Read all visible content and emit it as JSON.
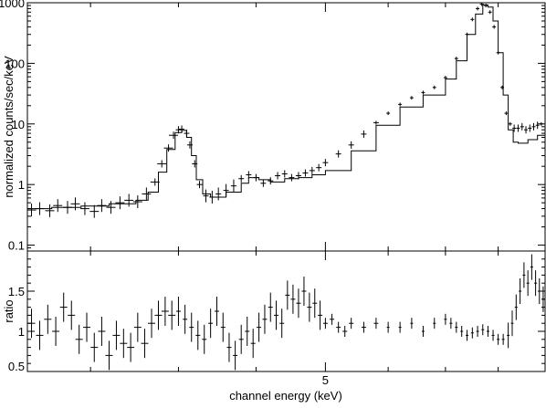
{
  "chart_data": [
    {
      "type": "scatter",
      "panel": "spectrum",
      "ylabel": "normalized counts/sec/keV",
      "yscale": "log",
      "xscale": "log",
      "xlim": [
        3.18,
        6.98
      ],
      "ylim": [
        0.08,
        1000
      ],
      "y_ticks": [
        {
          "value": 0.1,
          "label": "0.1"
        },
        {
          "value": 1,
          "label": "1"
        },
        {
          "value": 10,
          "label": "10"
        },
        {
          "value": 100,
          "label": "100"
        },
        {
          "value": 1000,
          "label": "1000"
        }
      ],
      "series": [
        {
          "style": "error-crosses",
          "x": [
            3.2,
            3.24,
            3.29,
            3.33,
            3.38,
            3.42,
            3.47,
            3.52,
            3.56,
            3.61,
            3.66,
            3.71,
            3.76,
            3.81,
            3.86,
            3.9,
            3.94,
            3.97,
            4.0,
            4.02,
            4.05,
            4.07,
            4.1,
            4.13,
            4.17,
            4.21,
            4.25,
            4.3,
            4.35,
            4.4,
            4.45,
            4.5,
            4.55,
            4.6,
            4.65,
            4.7,
            4.75,
            4.8,
            4.85,
            4.9,
            4.95,
            5.0,
            5.1,
            5.2,
            5.3,
            5.4,
            5.5,
            5.6,
            5.7,
            5.8,
            5.9,
            6.0,
            6.1,
            6.2,
            6.25,
            6.3,
            6.34,
            6.38,
            6.42,
            6.46,
            6.5,
            6.54,
            6.58,
            6.62,
            6.66,
            6.7,
            6.74,
            6.78,
            6.82,
            6.86,
            6.9,
            6.94
          ],
          "y": [
            0.38,
            0.4,
            0.37,
            0.45,
            0.42,
            0.48,
            0.4,
            0.36,
            0.45,
            0.42,
            0.5,
            0.55,
            0.52,
            0.7,
            1.1,
            2.2,
            4.0,
            6.5,
            8.0,
            8.2,
            7.0,
            4.5,
            2.2,
            1.0,
            0.65,
            0.62,
            0.7,
            0.8,
            0.95,
            1.25,
            1.45,
            1.3,
            1.05,
            1.15,
            1.4,
            1.5,
            1.3,
            1.4,
            1.55,
            1.7,
            1.9,
            2.3,
            3.2,
            4.5,
            6.8,
            10.5,
            15.0,
            21.0,
            27.0,
            33.0,
            40.0,
            58.0,
            120.0,
            300.0,
            530.0,
            800.0,
            950.0,
            900.0,
            700.0,
            400.0,
            150.0,
            40.0,
            15.0,
            10.0,
            8.5,
            8.5,
            9.0,
            8.0,
            8.5,
            9.0,
            9.5,
            10.0
          ]
        },
        {
          "style": "model-step",
          "x": [
            3.18,
            3.3,
            3.45,
            3.6,
            3.75,
            3.82,
            3.88,
            3.93,
            3.98,
            4.02,
            4.05,
            4.08,
            4.11,
            4.15,
            4.2,
            4.3,
            4.4,
            4.45,
            4.52,
            4.6,
            4.7,
            4.8,
            4.9,
            5.0,
            5.2,
            5.4,
            5.6,
            5.8,
            6.0,
            6.1,
            6.2,
            6.28,
            6.35,
            6.4,
            6.45,
            6.5,
            6.55,
            6.6,
            6.65,
            6.7,
            6.8,
            6.9,
            6.98
          ],
          "y": [
            0.4,
            0.42,
            0.44,
            0.48,
            0.55,
            0.75,
            1.6,
            3.8,
            7.2,
            7.8,
            6.0,
            3.0,
            1.2,
            0.7,
            0.62,
            0.75,
            1.05,
            1.3,
            1.2,
            1.1,
            1.25,
            1.3,
            1.45,
            1.7,
            3.6,
            9.5,
            19.0,
            30.0,
            55.0,
            110.0,
            300.0,
            650.0,
            920.0,
            850.0,
            500.0,
            150.0,
            30.0,
            8.0,
            5.0,
            4.8,
            5.5,
            6.5,
            7.0
          ]
        }
      ]
    },
    {
      "type": "scatter",
      "panel": "ratio",
      "xlabel": "channel energy (keV)",
      "ylabel": "ratio",
      "xscale": "log",
      "xlim": [
        3.18,
        6.98
      ],
      "ylim": [
        0.5,
        2.0
      ],
      "x_ticks": [
        {
          "value": 5,
          "label": "5"
        }
      ],
      "y_ticks": [
        {
          "value": 0.5,
          "label": "0.5"
        },
        {
          "value": 1,
          "label": "1"
        },
        {
          "value": 1.5,
          "label": "1.5"
        }
      ],
      "series": [
        {
          "style": "error-crosses",
          "x": [
            3.2,
            3.24,
            3.28,
            3.32,
            3.36,
            3.4,
            3.44,
            3.48,
            3.52,
            3.56,
            3.6,
            3.64,
            3.68,
            3.72,
            3.76,
            3.8,
            3.84,
            3.88,
            3.92,
            3.96,
            4.0,
            4.04,
            4.08,
            4.12,
            4.16,
            4.2,
            4.24,
            4.28,
            4.32,
            4.36,
            4.4,
            4.44,
            4.48,
            4.52,
            4.56,
            4.6,
            4.64,
            4.68,
            4.72,
            4.76,
            4.8,
            4.84,
            4.88,
            4.92,
            4.96,
            5.0,
            5.05,
            5.1,
            5.15,
            5.2,
            5.3,
            5.4,
            5.5,
            5.6,
            5.7,
            5.8,
            5.9,
            6.0,
            6.05,
            6.1,
            6.15,
            6.2,
            6.25,
            6.3,
            6.35,
            6.4,
            6.45,
            6.5,
            6.55,
            6.6,
            6.64,
            6.68,
            6.72,
            6.76,
            6.8,
            6.84,
            6.88,
            6.92,
            6.96
          ],
          "y": [
            1.1,
            0.95,
            1.15,
            1.0,
            1.3,
            1.2,
            0.9,
            1.05,
            0.8,
            1.0,
            0.7,
            0.95,
            0.85,
            0.8,
            1.05,
            0.85,
            1.1,
            1.2,
            1.25,
            1.2,
            1.25,
            1.15,
            1.05,
            0.95,
            0.9,
            1.1,
            1.25,
            1.05,
            0.8,
            0.7,
            0.9,
            1.0,
            0.85,
            1.05,
            1.15,
            1.3,
            1.2,
            1.1,
            1.45,
            1.4,
            1.35,
            1.5,
            1.3,
            1.35,
            1.2,
            1.1,
            1.15,
            1.05,
            1.0,
            1.1,
            1.05,
            1.1,
            1.05,
            1.05,
            1.1,
            1.0,
            1.1,
            1.15,
            1.1,
            1.05,
            1.0,
            0.95,
            0.98,
            1.0,
            1.02,
            1.0,
            0.95,
            0.9,
            0.9,
            0.95,
            1.1,
            1.3,
            1.5,
            1.7,
            1.6,
            1.8,
            1.6,
            1.5,
            1.4
          ]
        }
      ]
    }
  ]
}
